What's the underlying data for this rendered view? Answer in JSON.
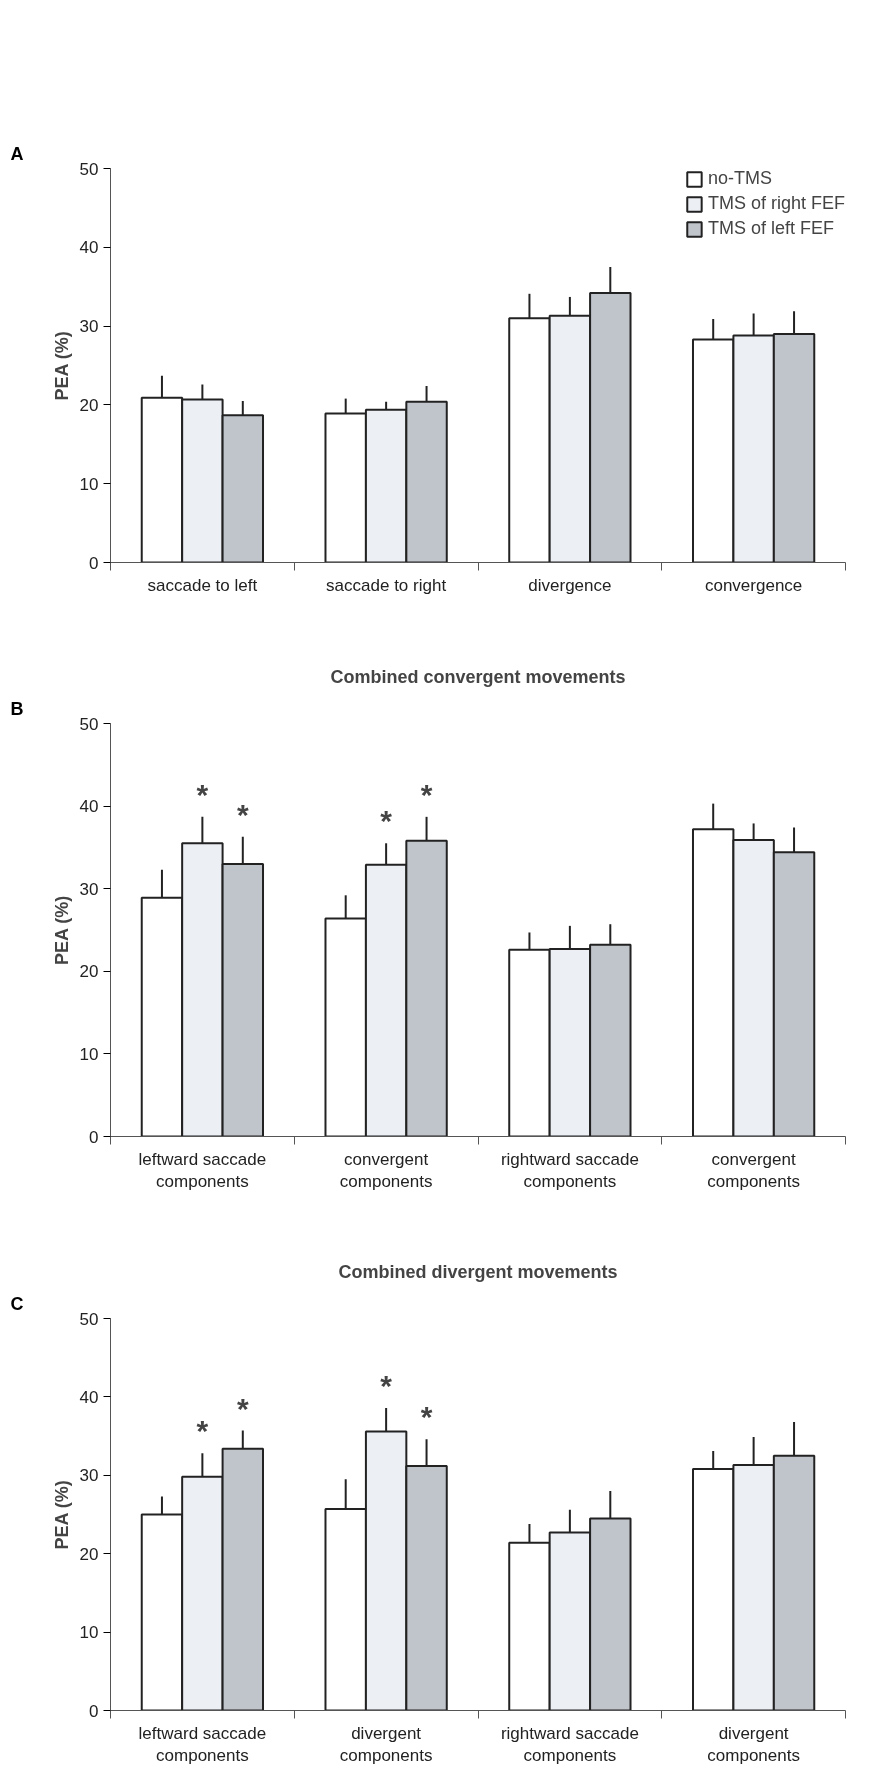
{
  "chart_data": [
    {
      "type": "bar",
      "annotations": [
        "A"
      ],
      "ylabel": "PEA (%)",
      "categories": [
        "saccade to left",
        "saccade to right",
        "divergence",
        "convergence"
      ],
      "ylim": [
        0,
        50
      ],
      "yticks": [
        0,
        10,
        20,
        30,
        40,
        50
      ],
      "grid": false,
      "legend": "top right",
      "series": [
        {
          "name": "no-TMS",
          "color": "#ffffff",
          "values": [
            20.9,
            18.9,
            31.0,
            28.3
          ],
          "errors": [
            [
              20.9,
              23.7
            ],
            [
              18.9,
              20.8
            ],
            [
              31.0,
              34.1
            ],
            [
              28.3,
              30.9
            ]
          ]
        },
        {
          "name": "TMS of right FEF",
          "color": "#eceff4",
          "values": [
            20.7,
            19.4,
            31.3,
            28.8
          ],
          "errors": [
            [
              20.7,
              22.6
            ],
            [
              19.4,
              20.4
            ],
            [
              31.3,
              33.7
            ],
            [
              28.8,
              31.6
            ]
          ]
        },
        {
          "name": "TMS of left FEF",
          "color": "#c0c4cb",
          "values": [
            18.7,
            20.4,
            34.2,
            29.0
          ],
          "errors": [
            [
              18.7,
              20.5
            ],
            [
              20.4,
              22.4
            ],
            [
              34.2,
              37.5
            ],
            [
              29.0,
              31.9
            ]
          ]
        }
      ]
    },
    {
      "type": "bar",
      "annotations": [
        "B"
      ],
      "title": "Combined convergent movements",
      "ylabel": "PEA (%)",
      "categories": [
        "leftward saccade\ncomponents",
        "convergent\ncomponents",
        "rightward saccade\ncomponents",
        "convergent\ncomponents"
      ],
      "ylim": [
        0,
        50
      ],
      "yticks": [
        0,
        10,
        20,
        30,
        40,
        50
      ],
      "grid": false,
      "series": [
        {
          "color": "#ffffff",
          "values": [
            28.9,
            26.4,
            22.6,
            37.2
          ],
          "errors": [
            [
              28.9,
              32.3
            ],
            [
              26.4,
              29.2
            ],
            [
              22.6,
              24.7
            ],
            [
              37.2,
              40.3
            ]
          ]
        },
        {
          "color": "#eceff4",
          "values": [
            35.5,
            32.9,
            22.7,
            35.9
          ],
          "errors": [
            [
              35.5,
              38.7
            ],
            [
              32.9,
              35.5
            ],
            [
              22.7,
              25.5
            ],
            [
              35.9,
              37.9
            ]
          ],
          "value_labels": [
            "*",
            "*",
            null,
            null
          ]
        },
        {
          "color": "#c0c4cb",
          "values": [
            33.0,
            35.8,
            23.2,
            34.4
          ],
          "errors": [
            [
              33.0,
              36.3
            ],
            [
              35.8,
              38.7
            ],
            [
              23.2,
              25.7
            ],
            [
              34.4,
              37.4
            ]
          ],
          "value_labels": [
            "*",
            "*",
            null,
            null
          ]
        }
      ]
    },
    {
      "type": "bar",
      "annotations": [
        "C"
      ],
      "title": "Combined divergent movements",
      "ylabel": "PEA (%)",
      "categories": [
        "leftward saccade\ncomponents",
        "divergent\ncomponents",
        "rightward saccade\ncomponents",
        "divergent\ncomponents"
      ],
      "ylim": [
        0,
        50
      ],
      "yticks": [
        0,
        10,
        20,
        30,
        40,
        50
      ],
      "grid": false,
      "series": [
        {
          "color": "#ffffff",
          "values": [
            25.0,
            25.7,
            21.4,
            30.8
          ],
          "errors": [
            [
              25.0,
              27.3
            ],
            [
              25.7,
              29.5
            ],
            [
              21.4,
              23.8
            ],
            [
              30.8,
              33.1
            ]
          ]
        },
        {
          "color": "#eceff4",
          "values": [
            29.8,
            35.6,
            22.7,
            31.3
          ],
          "errors": [
            [
              29.8,
              32.8
            ],
            [
              35.6,
              38.6
            ],
            [
              22.7,
              25.6
            ],
            [
              31.3,
              34.9
            ]
          ],
          "value_labels": [
            "*",
            "*",
            null,
            null
          ]
        },
        {
          "color": "#c0c4cb",
          "values": [
            33.4,
            31.2,
            24.5,
            32.5
          ],
          "errors": [
            [
              33.4,
              35.7
            ],
            [
              31.2,
              34.6
            ],
            [
              24.5,
              28.0
            ],
            [
              32.5,
              36.8
            ]
          ],
          "value_labels": [
            "*",
            "*",
            null,
            null
          ]
        }
      ]
    }
  ]
}
